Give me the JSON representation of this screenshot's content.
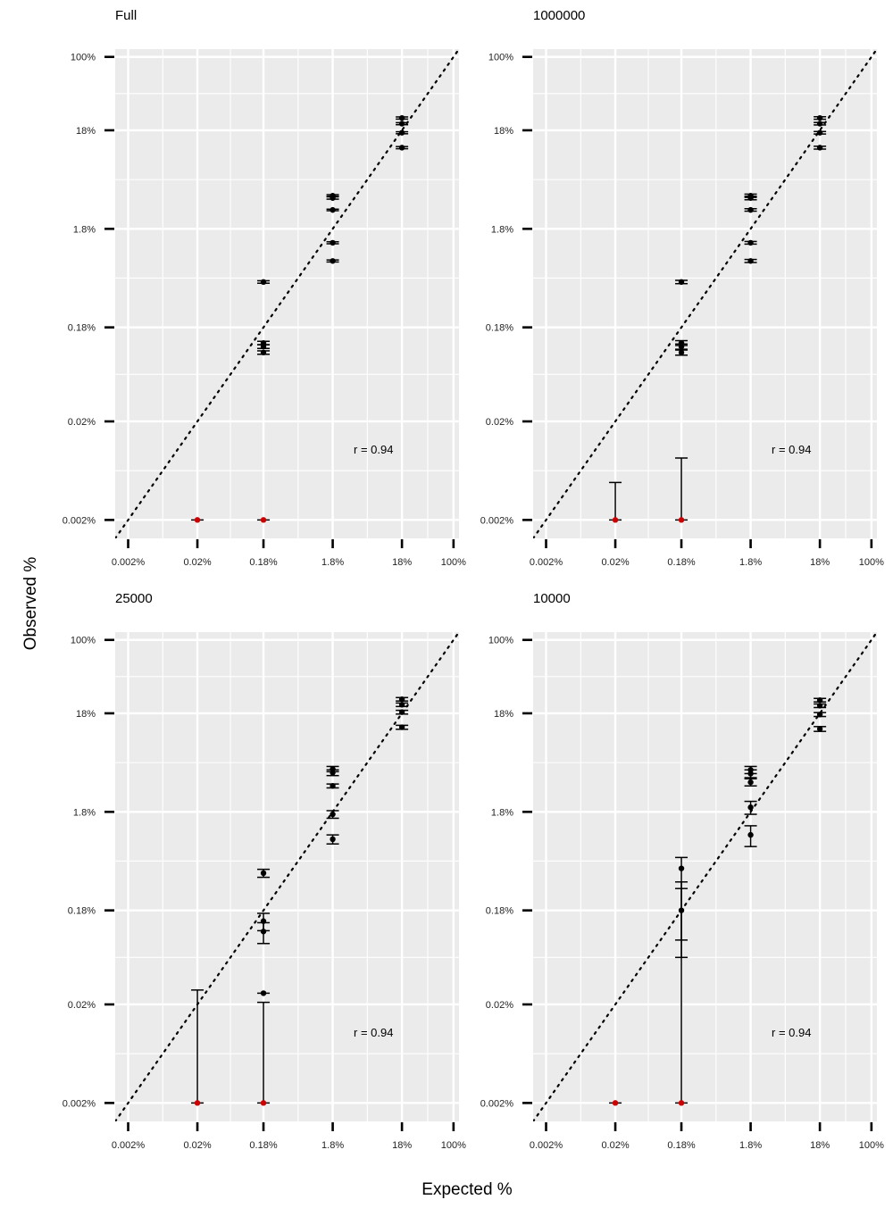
{
  "axes": {
    "xlabel": "Expected %",
    "ylabel": "Observed %",
    "ticks": [
      {
        "value": 0.002,
        "label": "0.002%"
      },
      {
        "value": 0.02,
        "label": "0.02%"
      },
      {
        "value": 0.18,
        "label": "0.18%"
      },
      {
        "value": 1.8,
        "label": "1.8%"
      },
      {
        "value": 18,
        "label": "18%"
      },
      {
        "value": 100,
        "label": "100%"
      }
    ]
  },
  "colors": {
    "panel_bg": "#ebebeb",
    "grid": "#ffffff",
    "point": "#000000",
    "zero_point": "#cc0000"
  },
  "chart_data": [
    {
      "type": "scatter",
      "title": "Full",
      "xlabel": "Expected %",
      "ylabel": "Observed %",
      "scale": "log",
      "xlim": [
        0.0013,
        120
      ],
      "ylim": [
        0.0013,
        120
      ],
      "annotation": "r = 0.94",
      "reference_line": "y = x (dotted)",
      "points": [
        {
          "x": 0.02,
          "y": 0.002,
          "zero": true
        },
        {
          "x": 0.18,
          "y": 0.002,
          "zero": true
        },
        {
          "x": 0.18,
          "y": 0.1,
          "lo": 0.096,
          "hi": 0.104
        },
        {
          "x": 0.18,
          "y": 0.115,
          "lo": 0.11,
          "hi": 0.12
        },
        {
          "x": 0.18,
          "y": 0.125,
          "lo": 0.12,
          "hi": 0.13
        },
        {
          "x": 0.18,
          "y": 0.52,
          "lo": 0.505,
          "hi": 0.535
        },
        {
          "x": 1.8,
          "y": 0.85,
          "lo": 0.83,
          "hi": 0.87
        },
        {
          "x": 1.8,
          "y": 1.3,
          "lo": 1.27,
          "hi": 1.33
        },
        {
          "x": 1.8,
          "y": 2.8,
          "lo": 2.75,
          "hi": 2.85
        },
        {
          "x": 1.8,
          "y": 3.7,
          "lo": 3.6,
          "hi": 3.85
        },
        {
          "x": 1.8,
          "y": 3.9,
          "lo": 3.8,
          "hi": 4.0
        },
        {
          "x": 18,
          "y": 12,
          "lo": 11.7,
          "hi": 12.3
        },
        {
          "x": 18,
          "y": 17,
          "lo": 16.6,
          "hi": 17.4
        },
        {
          "x": 18,
          "y": 21,
          "lo": 20.5,
          "hi": 21.5
        },
        {
          "x": 18,
          "y": 24,
          "lo": 23.4,
          "hi": 24.6
        }
      ]
    },
    {
      "type": "scatter",
      "title": "1000000",
      "xlabel": "Expected %",
      "ylabel": "Observed %",
      "scale": "log",
      "xlim": [
        0.0013,
        120
      ],
      "ylim": [
        0.0013,
        120
      ],
      "annotation": "r = 0.94",
      "reference_line": "y = x (dotted)",
      "points": [
        {
          "x": 0.02,
          "y": 0.002,
          "zero": true,
          "lo": 0.002,
          "hi": 0.0048
        },
        {
          "x": 0.18,
          "y": 0.002,
          "zero": true,
          "lo": 0.002,
          "hi": 0.0085
        },
        {
          "x": 0.18,
          "y": 0.1,
          "lo": 0.094,
          "hi": 0.106
        },
        {
          "x": 0.18,
          "y": 0.115,
          "lo": 0.108,
          "hi": 0.122
        },
        {
          "x": 0.18,
          "y": 0.125,
          "lo": 0.118,
          "hi": 0.132
        },
        {
          "x": 0.18,
          "y": 0.52,
          "lo": 0.5,
          "hi": 0.54
        },
        {
          "x": 1.8,
          "y": 0.85,
          "lo": 0.82,
          "hi": 0.88
        },
        {
          "x": 1.8,
          "y": 1.3,
          "lo": 1.26,
          "hi": 1.34
        },
        {
          "x": 1.8,
          "y": 2.8,
          "lo": 2.72,
          "hi": 2.88
        },
        {
          "x": 1.8,
          "y": 3.7,
          "lo": 3.55,
          "hi": 3.85
        },
        {
          "x": 1.8,
          "y": 3.9,
          "lo": 3.75,
          "hi": 4.05
        },
        {
          "x": 18,
          "y": 12,
          "lo": 11.6,
          "hi": 12.4
        },
        {
          "x": 18,
          "y": 17,
          "lo": 16.5,
          "hi": 17.5
        },
        {
          "x": 18,
          "y": 21,
          "lo": 20.4,
          "hi": 21.6
        },
        {
          "x": 18,
          "y": 24,
          "lo": 23.3,
          "hi": 24.7
        }
      ]
    },
    {
      "type": "scatter",
      "title": "25000",
      "xlabel": "Expected %",
      "ylabel": "Observed %",
      "scale": "log",
      "xlim": [
        0.0013,
        120
      ],
      "ylim": [
        0.0013,
        120
      ],
      "annotation": "r = 0.94",
      "reference_line": "y = x (dotted)",
      "points": [
        {
          "x": 0.02,
          "y": 0.002,
          "zero": true,
          "lo": 0.002,
          "hi": 0.028
        },
        {
          "x": 0.18,
          "y": 0.002,
          "zero": true,
          "lo": 0.002,
          "hi": 0.021
        },
        {
          "x": 0.18,
          "y": 0.026,
          "lo": 0.026,
          "hi": 0.026
        },
        {
          "x": 0.18,
          "y": 0.11,
          "lo": 0.083,
          "hi": 0.135
        },
        {
          "x": 0.18,
          "y": 0.14,
          "lo": 0.112,
          "hi": 0.168
        },
        {
          "x": 0.18,
          "y": 0.43,
          "lo": 0.39,
          "hi": 0.47
        },
        {
          "x": 1.8,
          "y": 0.95,
          "lo": 0.85,
          "hi": 1.05
        },
        {
          "x": 1.8,
          "y": 1.7,
          "lo": 1.55,
          "hi": 1.85
        },
        {
          "x": 1.8,
          "y": 3.3,
          "lo": 3.15,
          "hi": 3.45
        },
        {
          "x": 1.8,
          "y": 4.5,
          "lo": 4.2,
          "hi": 4.8
        },
        {
          "x": 1.8,
          "y": 4.9,
          "lo": 4.6,
          "hi": 5.2
        },
        {
          "x": 18,
          "y": 13,
          "lo": 12.4,
          "hi": 13.6
        },
        {
          "x": 18,
          "y": 18.5,
          "lo": 17.7,
          "hi": 19.3
        },
        {
          "x": 18,
          "y": 22,
          "lo": 21.1,
          "hi": 22.9
        },
        {
          "x": 18,
          "y": 25,
          "lo": 24.0,
          "hi": 26.0
        }
      ]
    },
    {
      "type": "scatter",
      "title": "10000",
      "xlabel": "Expected %",
      "ylabel": "Observed %",
      "scale": "log",
      "xlim": [
        0.0013,
        120
      ],
      "ylim": [
        0.0013,
        120
      ],
      "annotation": "r = 0.94",
      "reference_line": "y = x (dotted)",
      "points": [
        {
          "x": 0.02,
          "y": 0.002,
          "zero": true
        },
        {
          "x": 0.18,
          "y": 0.002,
          "zero": true,
          "lo": 0.002,
          "hi": 0.3
        },
        {
          "x": 0.18,
          "y": 0.18,
          "lo": 0.06,
          "hi": 0.35
        },
        {
          "x": 0.18,
          "y": 0.48,
          "lo": 0.09,
          "hi": 0.62
        },
        {
          "x": 1.8,
          "y": 1.05,
          "lo": 0.8,
          "hi": 1.3
        },
        {
          "x": 1.8,
          "y": 2.0,
          "lo": 1.7,
          "hi": 2.3
        },
        {
          "x": 1.8,
          "y": 3.6,
          "lo": 3.3,
          "hi": 3.9
        },
        {
          "x": 1.8,
          "y": 4.4,
          "lo": 4.0,
          "hi": 4.8
        },
        {
          "x": 1.8,
          "y": 4.8,
          "lo": 4.4,
          "hi": 5.2
        },
        {
          "x": 18,
          "y": 12.5,
          "lo": 11.8,
          "hi": 13.2
        },
        {
          "x": 18,
          "y": 17.5,
          "lo": 16.7,
          "hi": 18.3
        },
        {
          "x": 18,
          "y": 21.5,
          "lo": 20.6,
          "hi": 22.4
        },
        {
          "x": 18,
          "y": 24.5,
          "lo": 23.5,
          "hi": 25.5
        }
      ]
    }
  ]
}
